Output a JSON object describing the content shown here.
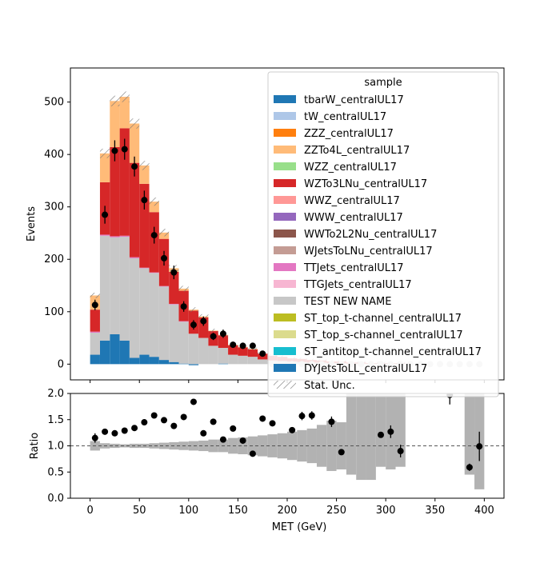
{
  "chart_data": [
    {
      "type": "stacked-histogram",
      "ylabel": "Events",
      "ylim": [
        -30,
        565
      ],
      "yticks": [
        0,
        100,
        200,
        300,
        400,
        500
      ],
      "bin_width": 10,
      "bin_centers": [
        5,
        15,
        25,
        35,
        45,
        55,
        65,
        75,
        85,
        95,
        105,
        115,
        125,
        135,
        145,
        155,
        165,
        175,
        185,
        195,
        205,
        215,
        225,
        235,
        245,
        255,
        265,
        275,
        285,
        295,
        305,
        315,
        325,
        335,
        345,
        355,
        365,
        375,
        385,
        395
      ],
      "legend_title": "sample",
      "legend_position": "upper right",
      "series": [
        {
          "name": "DYJetsToLL_centralUL17",
          "color": "#1f77b4",
          "values": [
            18,
            45,
            57,
            45,
            12,
            18,
            14,
            8,
            4,
            1,
            -2,
            0,
            0,
            1,
            0,
            0,
            0,
            0,
            0,
            0,
            0,
            0,
            0,
            0,
            0,
            0,
            0,
            0,
            0,
            0,
            0,
            0,
            0,
            0,
            0,
            0,
            0,
            0,
            0,
            0
          ]
        },
        {
          "name": "TEST NEW NAME",
          "color": "#c7c7c7",
          "values": [
            42,
            200,
            185,
            198,
            190,
            165,
            160,
            140,
            110,
            80,
            58,
            50,
            35,
            30,
            18,
            16,
            14,
            9,
            7,
            6,
            5,
            4,
            3,
            3,
            2,
            2,
            1,
            1,
            1,
            1,
            1,
            1,
            0,
            0,
            0,
            0,
            0,
            0,
            0,
            0
          ]
        },
        {
          "name": "TTJets_centralUL17",
          "color": "#e377c2",
          "values": [
            2,
            2,
            2,
            2,
            2,
            1,
            1,
            1,
            1,
            1,
            0,
            0,
            0,
            0,
            0,
            0,
            0,
            0,
            0,
            0,
            0,
            0,
            0,
            0,
            0,
            0,
            0,
            0,
            0,
            0,
            0,
            0,
            0,
            0,
            0,
            0,
            0,
            0,
            0,
            0
          ]
        },
        {
          "name": "WZTo3LNu_centralUL17",
          "color": "#d62728",
          "values": [
            42,
            100,
            170,
            205,
            180,
            160,
            115,
            90,
            61,
            58,
            44,
            39,
            28,
            24,
            18,
            16,
            14,
            11,
            9,
            8,
            6,
            6,
            5,
            4,
            3,
            3,
            2,
            2,
            1,
            1,
            1,
            1,
            0,
            0,
            0,
            0,
            0,
            0,
            0,
            0
          ]
        },
        {
          "name": "ZZTo4L_centralUL17",
          "color": "#ffbb78",
          "values": [
            27,
            55,
            88,
            60,
            75,
            35,
            20,
            12,
            7,
            4,
            2,
            2,
            1,
            1,
            1,
            1,
            1,
            0,
            0,
            0,
            0,
            0,
            0,
            0,
            0,
            0,
            0,
            0,
            0,
            0,
            0,
            0,
            0,
            0,
            0,
            0,
            0,
            0,
            0,
            0
          ]
        }
      ],
      "legend_entries": [
        {
          "name": "tbarW_centralUL17",
          "color": "#1f77b4"
        },
        {
          "name": "tW_centralUL17",
          "color": "#aec7e8"
        },
        {
          "name": "ZZZ_centralUL17",
          "color": "#ff7f0e"
        },
        {
          "name": "ZZTo4L_centralUL17",
          "color": "#ffbb78"
        },
        {
          "name": "WZZ_centralUL17",
          "color": "#98df8a"
        },
        {
          "name": "WZTo3LNu_centralUL17",
          "color": "#d62728"
        },
        {
          "name": "WWZ_centralUL17",
          "color": "#ff9896"
        },
        {
          "name": "WWW_centralUL17",
          "color": "#9467bd"
        },
        {
          "name": "WWTo2L2Nu_centralUL17",
          "color": "#8c564b"
        },
        {
          "name": "WJetsToLNu_centralUL17",
          "color": "#c49c94"
        },
        {
          "name": "TTJets_centralUL17",
          "color": "#e377c2"
        },
        {
          "name": "TTGJets_centralUL17",
          "color": "#f7b6d2"
        },
        {
          "name": "TEST NEW NAME",
          "color": "#c7c7c7"
        },
        {
          "name": "ST_top_t-channel_centralUL17",
          "color": "#bcbd22"
        },
        {
          "name": "ST_top_s-channel_centralUL17",
          "color": "#dbdb8d"
        },
        {
          "name": "ST_antitop_t-channel_centralUL17",
          "color": "#17becf"
        },
        {
          "name": "DYJetsToLL_centralUL17",
          "color": "#1f77b4"
        },
        {
          "name": "Stat. Unc.",
          "hatch": true
        }
      ],
      "data_points": {
        "x": [
          5,
          15,
          25,
          35,
          45,
          55,
          65,
          75,
          85,
          95,
          105,
          115,
          125,
          135,
          145,
          155,
          165,
          175
        ],
        "y": [
          113,
          285,
          407,
          410,
          377,
          313,
          246,
          202,
          175,
          110,
          75,
          82,
          53,
          58,
          37,
          35,
          35,
          20
        ],
        "yerr": [
          10,
          17,
          20,
          20,
          19,
          18,
          16,
          14,
          13,
          10,
          9,
          9,
          7,
          8,
          6,
          6,
          6,
          4
        ]
      },
      "faint_points_x": [
        185,
        195,
        205,
        215,
        225,
        235,
        245,
        255,
        265,
        275,
        285,
        295,
        305,
        315,
        325,
        335,
        345,
        355,
        365,
        375,
        385,
        395
      ]
    },
    {
      "type": "ratio",
      "xlabel": "MET (GeV)",
      "ylabel": "Ratio",
      "xlim": [
        -20,
        420
      ],
      "ylim": [
        0.0,
        2.0
      ],
      "xticks": [
        0,
        50,
        100,
        150,
        200,
        250,
        300,
        350,
        400
      ],
      "yticks": [
        0.0,
        0.5,
        1.0,
        1.5,
        2.0
      ],
      "reference_line": 1.0,
      "uncertainty_band": {
        "lo": [
          0.91,
          0.95,
          0.96,
          0.97,
          0.96,
          0.96,
          0.95,
          0.94,
          0.93,
          0.92,
          0.91,
          0.9,
          0.88,
          0.88,
          0.85,
          0.84,
          0.82,
          0.8,
          0.78,
          0.76,
          0.73,
          0.7,
          0.67,
          0.6,
          0.52,
          0.55,
          0.45,
          0.35,
          0.35,
          0.6,
          0.55,
          0.6,
          null,
          null,
          null,
          null,
          null,
          null,
          0.45,
          0.17
        ],
        "hi": [
          1.09,
          1.05,
          1.04,
          1.03,
          1.04,
          1.04,
          1.05,
          1.06,
          1.07,
          1.08,
          1.09,
          1.1,
          1.12,
          1.12,
          1.15,
          1.16,
          1.18,
          1.2,
          1.22,
          1.24,
          1.27,
          1.3,
          1.33,
          1.4,
          1.48,
          1.45,
          2.0,
          2.0,
          2.0,
          2.0,
          2.0,
          2.0,
          null,
          null,
          null,
          null,
          null,
          null,
          2.0,
          2.0
        ]
      },
      "points": {
        "x": [
          5,
          15,
          25,
          35,
          45,
          55,
          65,
          75,
          85,
          95,
          105,
          115,
          125,
          135,
          145,
          155,
          165,
          175,
          185,
          205,
          215,
          225,
          245,
          255,
          295,
          305,
          315,
          365,
          385,
          395
        ],
        "y": [
          1.15,
          1.27,
          1.24,
          1.29,
          1.34,
          1.45,
          1.58,
          1.49,
          1.38,
          1.55,
          1.84,
          1.24,
          1.46,
          1.12,
          1.33,
          1.1,
          0.85,
          1.52,
          1.43,
          1.3,
          1.57,
          1.58,
          1.46,
          0.88,
          1.21,
          1.27,
          0.9,
          1.97,
          0.59,
          0.99
        ],
        "yerr": [
          0.09,
          0.0,
          0.0,
          0.0,
          0.0,
          0.0,
          0.0,
          0.0,
          0.0,
          0.0,
          0.0,
          0.0,
          0.0,
          0.0,
          0.0,
          0.0,
          0.0,
          0.0,
          0.0,
          0.0,
          0.08,
          0.08,
          0.1,
          0.0,
          0.0,
          0.12,
          0.12,
          0.18,
          0.07,
          0.28
        ]
      }
    }
  ]
}
